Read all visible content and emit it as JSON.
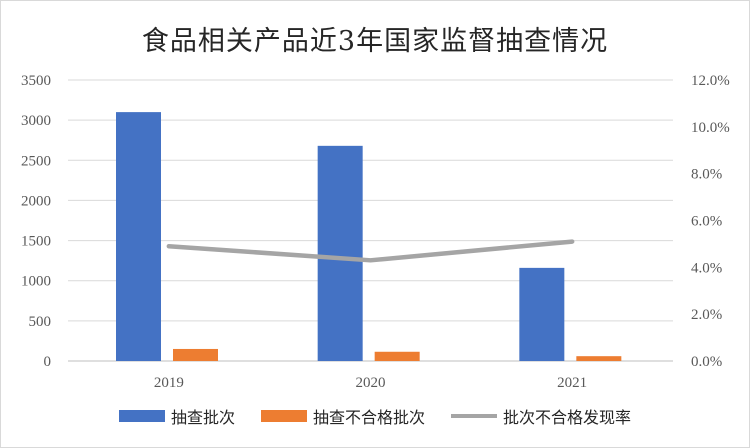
{
  "chart_data": {
    "type": "bar",
    "title": "食品相关产品近3年国家监督抽查情况",
    "categories": [
      "2019",
      "2020",
      "2021"
    ],
    "y_left": {
      "min": 0,
      "max": 3500,
      "step": 500,
      "ticks": [
        "0",
        "500",
        "1000",
        "1500",
        "2000",
        "2500",
        "3000",
        "3500"
      ]
    },
    "y_right": {
      "min": 0,
      "max": 12,
      "step": 2,
      "ticks": [
        "0.0%",
        "2.0%",
        "4.0%",
        "6.0%",
        "8.0%",
        "10.0%",
        "12.0%"
      ]
    },
    "series": [
      {
        "name": "抽查批次",
        "type": "bar",
        "axis": "left",
        "color": "#4472c4",
        "values": [
          3100,
          2680,
          1160
        ]
      },
      {
        "name": "抽查不合格批次",
        "type": "bar",
        "axis": "left",
        "color": "#ed7d31",
        "values": [
          150,
          115,
          60
        ]
      },
      {
        "name": "批次不合格发现率",
        "type": "line",
        "axis": "right",
        "color": "#a5a5a5",
        "values": [
          4.9,
          4.3,
          5.1
        ]
      }
    ],
    "gridlines": true,
    "legend_position": "bottom"
  }
}
